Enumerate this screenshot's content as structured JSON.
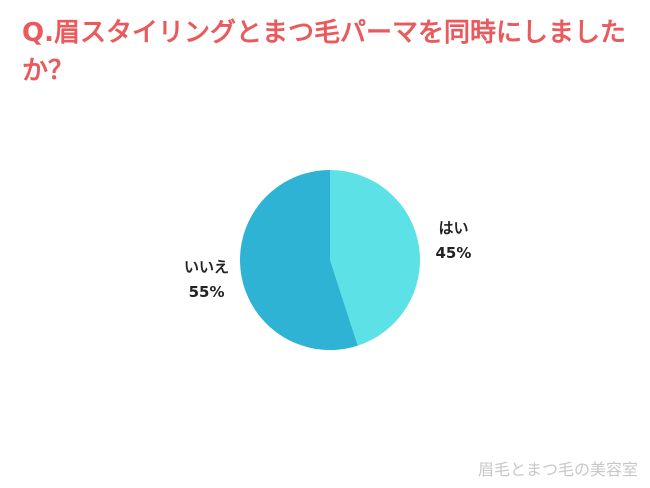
{
  "chart_data": {
    "type": "pie",
    "title": "Q.眉スタイリングとまつ毛パーマを同時にしましたか？",
    "categories": [
      "はい",
      "いいえ"
    ],
    "values": [
      45,
      55
    ],
    "value_labels": [
      "45%",
      "55%"
    ],
    "colors": [
      "#5ce1e6",
      "#2fb3d5"
    ]
  },
  "watermark": "眉毛とまつ毛の美容室"
}
